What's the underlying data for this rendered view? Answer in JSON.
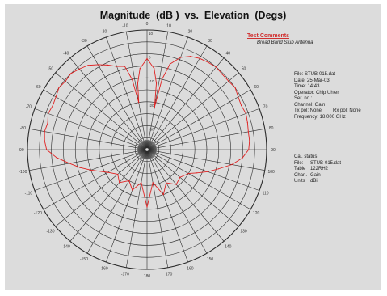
{
  "chart_data": {
    "type": "polar",
    "title": "Magnitude  (dB )  vs.  Elevation  (Degs)",
    "angular_ticks": [
      "0",
      "10",
      "20",
      "30",
      "40",
      "50",
      "60",
      "70",
      "80",
      "90",
      "100",
      "110",
      "120",
      "130",
      "140",
      "150",
      "160",
      "170",
      "180",
      "-170",
      "-160",
      "-150",
      "-140",
      "-130",
      "-120",
      "-110",
      "-100",
      "-90",
      "-80",
      "-70",
      "-60",
      "-50",
      "-40",
      "-30",
      "-20",
      "-10"
    ],
    "radial_ticks": [
      "-30",
      "-20",
      "-10",
      "0",
      "10"
    ],
    "grid": true,
    "series": [
      {
        "color": "#e02020",
        "points": [
          [
            0,
            -2
          ],
          [
            5,
            -6
          ],
          [
            8,
            -12
          ],
          [
            10,
            -22
          ],
          [
            12,
            -10
          ],
          [
            15,
            -3
          ],
          [
            20,
            1
          ],
          [
            25,
            3
          ],
          [
            30,
            4
          ],
          [
            35,
            4.5
          ],
          [
            40,
            5
          ],
          [
            45,
            4.5
          ],
          [
            50,
            4.5
          ],
          [
            55,
            5
          ],
          [
            60,
            4
          ],
          [
            65,
            3.5
          ],
          [
            70,
            4
          ],
          [
            75,
            3.5
          ],
          [
            80,
            3
          ],
          [
            85,
            3
          ],
          [
            90,
            2.5
          ],
          [
            95,
            0
          ],
          [
            100,
            -4
          ],
          [
            105,
            -9
          ],
          [
            110,
            -13
          ],
          [
            115,
            -17
          ],
          [
            120,
            -20
          ],
          [
            130,
            -22
          ],
          [
            140,
            -21
          ],
          [
            150,
            -24
          ],
          [
            160,
            -20
          ],
          [
            170,
            -26
          ],
          [
            180,
            -16
          ],
          [
            -170,
            -26
          ],
          [
            -160,
            -22
          ],
          [
            -150,
            -25
          ],
          [
            -140,
            -22
          ],
          [
            -130,
            -24
          ],
          [
            -120,
            -21
          ],
          [
            -110,
            -15
          ],
          [
            -105,
            -11
          ],
          [
            -100,
            -7
          ],
          [
            -95,
            -2
          ],
          [
            -90,
            2
          ],
          [
            -85,
            3
          ],
          [
            -80,
            3.5
          ],
          [
            -75,
            3
          ],
          [
            -70,
            4
          ],
          [
            -65,
            3.5
          ],
          [
            -60,
            4
          ],
          [
            -55,
            5
          ],
          [
            -50,
            4.5
          ],
          [
            -45,
            5
          ],
          [
            -40,
            4
          ],
          [
            -35,
            3
          ],
          [
            -30,
            1
          ],
          [
            -25,
            -1
          ],
          [
            -20,
            -3
          ],
          [
            -15,
            -4
          ],
          [
            -12,
            -10
          ],
          [
            -10,
            -20
          ],
          [
            -8,
            -12
          ],
          [
            -5,
            -6
          ],
          [
            0,
            -2
          ]
        ]
      }
    ]
  },
  "test_comments": {
    "header": "Test Comments",
    "text": "Broad Band Stub Antenna"
  },
  "file_info": {
    "file": "File: STUB-015.dat",
    "date": "Date: 25-Mar-03",
    "time": "Time: 14:43",
    "operator": "Operator: Chip Uhler",
    "ser_no": "Ser. no.:",
    "channel": "Channel: Gain",
    "tx_pol": "Tx pol: None",
    "rx_pol": "Rx pol: None",
    "frequency": "Frequency:  18.000 GHz"
  },
  "cal_info": {
    "status": "Cal. status",
    "file_label": "File:",
    "file_value": "STUB-015.dat",
    "table_label": "Table",
    "table_value": "122RH2",
    "chan_label": "Chan.",
    "chan_value": "Gain",
    "units_label": "Units",
    "units_value": "dBi"
  },
  "colors": {
    "background": "#dcdcdc",
    "grid": "#2a2a2a",
    "trace": "#e02020",
    "accent": "#d03030"
  }
}
